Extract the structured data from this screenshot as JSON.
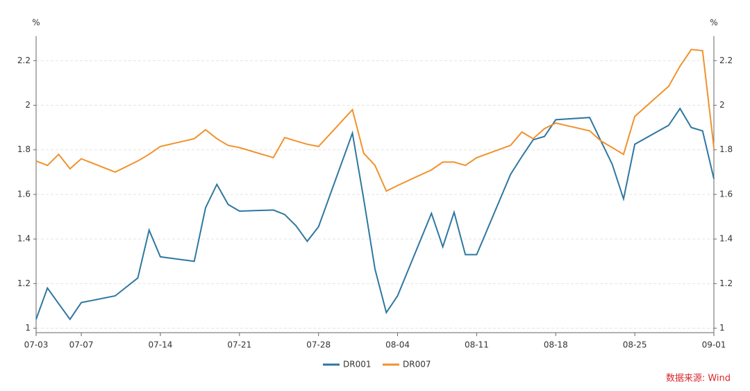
{
  "chart_data": {
    "type": "line",
    "y_label": "%",
    "source": "数据来源: Wind",
    "x": [
      "07-03",
      "07-04",
      "07-05",
      "07-06",
      "07-07",
      "07-10",
      "07-12",
      "07-13",
      "07-14",
      "07-17",
      "07-18",
      "07-19",
      "07-20",
      "07-21",
      "07-24",
      "07-25",
      "07-26",
      "07-27",
      "07-28",
      "07-31",
      "08-01",
      "08-02",
      "08-03",
      "08-04",
      "08-07",
      "08-08",
      "08-09",
      "08-10",
      "08-11",
      "08-14",
      "08-15",
      "08-16",
      "08-17",
      "08-18",
      "08-21",
      "08-22",
      "08-23",
      "08-24",
      "08-25",
      "08-28",
      "08-29",
      "08-30",
      "08-31",
      "09-01"
    ],
    "series": [
      {
        "name": "DR001",
        "color": "#2e77a0",
        "values": [
          1.04,
          1.18,
          1.11,
          1.04,
          1.115,
          1.145,
          1.225,
          1.44,
          1.32,
          1.3,
          1.54,
          1.645,
          1.555,
          1.525,
          1.53,
          1.51,
          1.46,
          1.39,
          1.455,
          1.875,
          1.58,
          1.265,
          1.07,
          1.145,
          1.515,
          1.365,
          1.52,
          1.33,
          1.33,
          1.69,
          1.77,
          1.845,
          1.86,
          1.935,
          1.945,
          1.84,
          1.735,
          1.58,
          1.825,
          1.91,
          1.985,
          1.9,
          1.885,
          1.67
        ]
      },
      {
        "name": "DR007",
        "color": "#f0922b",
        "values": [
          1.75,
          1.73,
          1.78,
          1.715,
          1.76,
          1.7,
          1.75,
          1.78,
          1.815,
          1.85,
          1.89,
          1.85,
          1.82,
          1.81,
          1.765,
          1.855,
          1.84,
          1.825,
          1.815,
          1.98,
          1.785,
          1.73,
          1.615,
          1.64,
          1.71,
          1.745,
          1.745,
          1.73,
          1.765,
          1.82,
          1.88,
          1.85,
          1.895,
          1.92,
          1.885,
          1.84,
          1.81,
          1.78,
          1.95,
          2.085,
          2.175,
          2.25,
          2.245,
          1.81
        ]
      }
    ],
    "xlim": [
      "07-03",
      "09-01"
    ],
    "xticks": [
      "07-03",
      "07-07",
      "07-14",
      "07-21",
      "07-28",
      "08-04",
      "08-11",
      "08-18",
      "08-25",
      "09-01"
    ],
    "ylim": [
      0.98,
      2.31
    ],
    "yticks": [
      1,
      1.2,
      1.4,
      1.6,
      1.8,
      2,
      2.2
    ],
    "grid": true,
    "legend": "bottom"
  }
}
